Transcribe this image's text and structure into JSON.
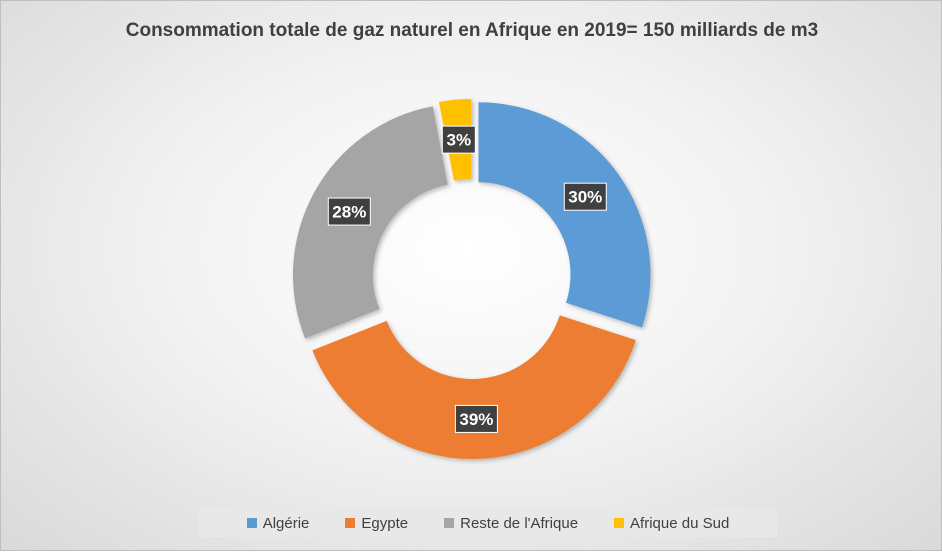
{
  "chart_data": {
    "type": "pie",
    "title": "Consommation totale de gaz naturel en Afrique en 2019= 150 milliards de m3",
    "categories": [
      "Algérie",
      "Egypte",
      "Reste de l'Afrique",
      "Afrique du Sud"
    ],
    "values": [
      30,
      39,
      28,
      3
    ],
    "labels": [
      "30%",
      "39%",
      "28%",
      "3%"
    ],
    "colors": [
      "#5B9BD5",
      "#ED7D31",
      "#A5A5A5",
      "#FFC000"
    ],
    "donut": true,
    "exploded": true,
    "legend_position": "bottom"
  }
}
